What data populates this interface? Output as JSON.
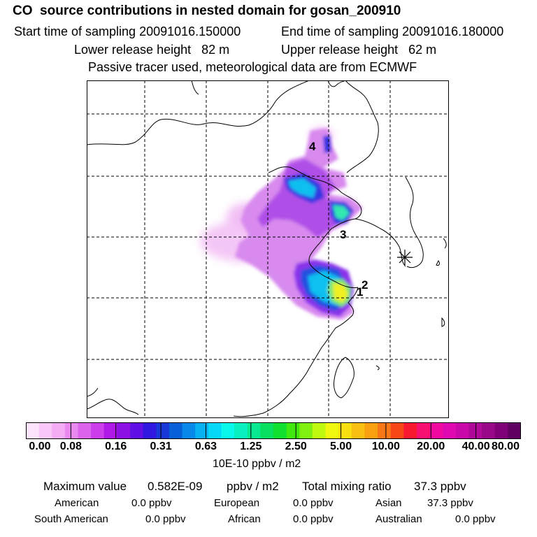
{
  "title": "CO  source contributions in nested domain for gosan_200910",
  "sampling": {
    "start_label": "Start time of sampling 20091016.150000",
    "end_label": "End time of sampling 20091016.180000"
  },
  "release": {
    "lower_label": "Lower release height   82 m",
    "upper_label": "Upper release height   62 m"
  },
  "note": "Passive tracer used, meteorological data are from ECMWF",
  "map": {
    "markers": [
      "1",
      "2",
      "3",
      "4"
    ],
    "receptor_symbol": "asterisk-icon"
  },
  "colorbar": {
    "colors": [
      "#fce4fc",
      "#f8c8f8",
      "#f4acf4",
      "#ea8af0",
      "#dc64ec",
      "#cc3cea",
      "#b018e8",
      "#8c10e6",
      "#6010e4",
      "#3018e0",
      "#1838d8",
      "#0860d8",
      "#0888e8",
      "#08b0f0",
      "#08d8f8",
      "#08f8ec",
      "#08f0c0",
      "#08e890",
      "#08e060",
      "#10e030",
      "#40e810",
      "#80f010",
      "#c0f810",
      "#f0f810",
      "#f8e010",
      "#f8c010",
      "#f8a010",
      "#f87818",
      "#f84818",
      "#f81830",
      "#f81070",
      "#f008a0",
      "#e008b0",
      "#c808a8",
      "#b00898",
      "#980888",
      "#800078",
      "#600060"
    ],
    "tick_labels": [
      "0.00",
      "0.08",
      "0.16",
      "0.31",
      "0.63",
      "1.25",
      "2.50",
      "5.00",
      "10.00",
      "20.00",
      "40.00",
      "80.00"
    ],
    "units": "10E-10 ppbv / m2"
  },
  "summary": {
    "max_label": "Maximum value",
    "max_value": "0.582E-09",
    "max_unit": "ppbv / m2",
    "total_label": "Total mixing ratio",
    "total_value": "37.3 ppbv"
  },
  "sources": [
    {
      "name": "American",
      "value": "0.0 ppbv"
    },
    {
      "name": "European",
      "value": "0.0 ppbv"
    },
    {
      "name": "Asian",
      "value": "37.3 ppbv"
    },
    {
      "name": "South American",
      "value": "0.0 ppbv"
    },
    {
      "name": "African",
      "value": "0.0 ppbv"
    },
    {
      "name": "Australian",
      "value": "0.0 ppbv"
    }
  ]
}
